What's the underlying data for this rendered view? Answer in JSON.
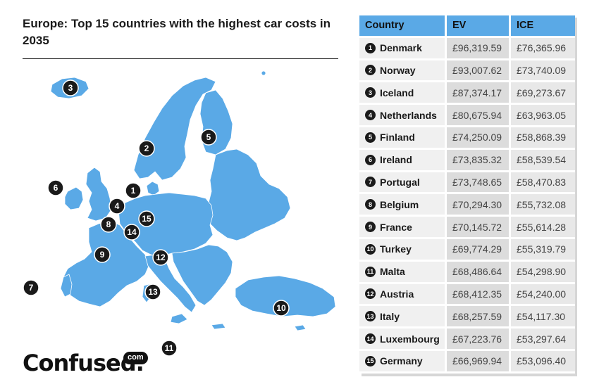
{
  "title": "Europe: Top 15 countries with the highest car costs in 2035",
  "logo": {
    "word": "Confused.",
    "badge": "com"
  },
  "colors": {
    "map": "#5aa9e6",
    "header": "#5aa9e6",
    "marker": "#1a1a1a"
  },
  "table": {
    "headers": {
      "country": "Country",
      "ev": "EV",
      "ice": "ICE"
    },
    "rows": [
      {
        "rank": "1",
        "country": "Denmark",
        "ev": "£96,319.59",
        "ice": "£76,365.96"
      },
      {
        "rank": "2",
        "country": "Norway",
        "ev": "£93,007.62",
        "ice": "£73,740.09"
      },
      {
        "rank": "3",
        "country": "Iceland",
        "ev": "£87,374.17",
        "ice": "£69,273.67"
      },
      {
        "rank": "4",
        "country": "Netherlands",
        "ev": "£80,675.94",
        "ice": "£63,963.05"
      },
      {
        "rank": "5",
        "country": "Finland",
        "ev": "£74,250.09",
        "ice": "£58,868.39"
      },
      {
        "rank": "6",
        "country": "Ireland",
        "ev": "£73,835.32",
        "ice": "£58,539.54"
      },
      {
        "rank": "7",
        "country": "Portugal",
        "ev": "£73,748.65",
        "ice": "£58,470.83"
      },
      {
        "rank": "8",
        "country": "Belgium",
        "ev": "£70,294.30",
        "ice": "£55,732.08"
      },
      {
        "rank": "9",
        "country": "France",
        "ev": "£70,145.72",
        "ice": "£55,614.28"
      },
      {
        "rank": "10",
        "country": "Turkey",
        "ev": "£69,774.29",
        "ice": "£55,319.79"
      },
      {
        "rank": "11",
        "country": "Malta",
        "ev": "£68,486.64",
        "ice": "£54,298.90"
      },
      {
        "rank": "12",
        "country": "Austria",
        "ev": "£68,412.35",
        "ice": "£54,240.00"
      },
      {
        "rank": "13",
        "country": "Italy",
        "ev": "£68,257.59",
        "ice": "£54,117.30"
      },
      {
        "rank": "14",
        "country": "Luxembourg",
        "ev": "£67,223.76",
        "ice": "£53,297.64"
      },
      {
        "rank": "15",
        "country": "Germany",
        "ev": "£66,969.94",
        "ice": "£53,096.40"
      }
    ]
  },
  "map_markers": [
    "3",
    "2",
    "5",
    "6",
    "1",
    "4",
    "15",
    "8",
    "14",
    "9",
    "12",
    "7",
    "13",
    "10",
    "11"
  ]
}
